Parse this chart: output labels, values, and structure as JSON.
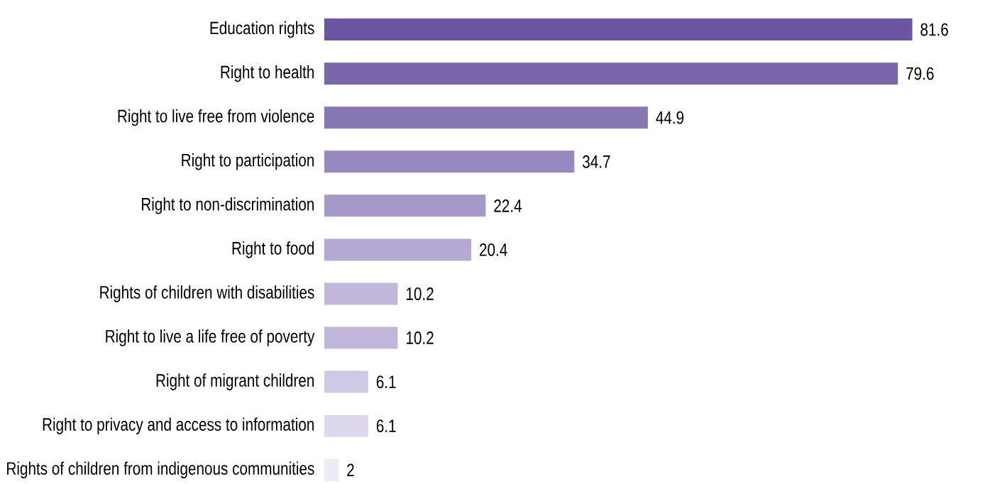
{
  "chart_data": {
    "type": "bar",
    "orientation": "horizontal",
    "data_labels": true,
    "categories": [
      "Education rights",
      "Right to health",
      "Right to live free from violence",
      "Right to participation",
      "Right to non-discrimination",
      "Right to food",
      "Rights of children with disabilities",
      "Right to live a life free of poverty",
      "Right of migrant children",
      "Right to privacy and access to information",
      "Rights of children from indigenous communities"
    ],
    "values": [
      81.6,
      79.6,
      44.9,
      34.7,
      22.4,
      20.4,
      10.2,
      10.2,
      6.1,
      6.1,
      2
    ],
    "colors": [
      "#6b55a3",
      "#7a66ab",
      "#8676b3",
      "#9888c0",
      "#a698c9",
      "#b4a9d3",
      "#c0b7da",
      "#c0b7da",
      "#cfc9e5",
      "#ddd8ee",
      "#ecebf6"
    ]
  }
}
